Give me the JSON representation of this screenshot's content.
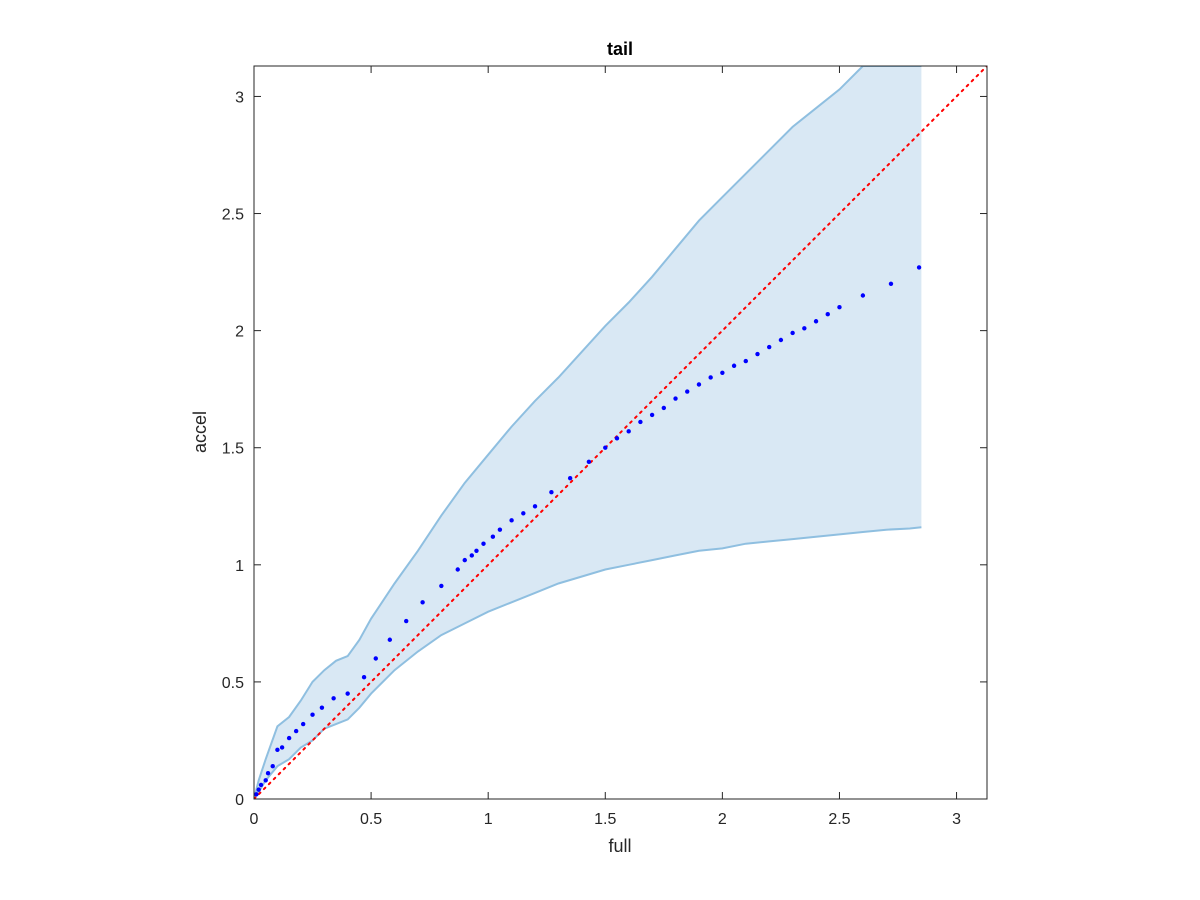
{
  "chart_data": {
    "type": "scatter",
    "title": "tail",
    "xlabel": "full",
    "ylabel": "accel",
    "xlim": [
      0,
      3.13
    ],
    "ylim": [
      0,
      3.13
    ],
    "xticks": [
      0,
      0.5,
      1,
      1.5,
      2,
      2.5,
      3
    ],
    "yticks": [
      0,
      0.5,
      1,
      1.5,
      2,
      2.5,
      3
    ],
    "xtick_labels": [
      "0",
      "0.5",
      "1",
      "1.5",
      "2",
      "2.5",
      "3"
    ],
    "ytick_labels": [
      "0",
      "0.5",
      "1",
      "1.5",
      "2",
      "2.5",
      "3"
    ],
    "grid": false,
    "colors": {
      "points": "#0000ff",
      "band_fill": "#d9e8f4",
      "band_edge": "#8fbfe0",
      "reference_line": "#ff0000",
      "axes": "#262626"
    },
    "reference_line": {
      "style": "dotted",
      "x": [
        0,
        3.13
      ],
      "y": [
        0,
        3.13
      ]
    },
    "band": {
      "x": [
        0,
        0.02,
        0.05,
        0.1,
        0.15,
        0.2,
        0.25,
        0.3,
        0.35,
        0.4,
        0.45,
        0.5,
        0.6,
        0.7,
        0.8,
        0.9,
        1.0,
        1.1,
        1.2,
        1.3,
        1.4,
        1.5,
        1.6,
        1.7,
        1.8,
        1.9,
        2.0,
        2.1,
        2.2,
        2.3,
        2.4,
        2.5,
        2.6,
        2.7,
        2.8,
        2.85
      ],
      "upper": [
        0,
        0.08,
        0.17,
        0.31,
        0.35,
        0.42,
        0.5,
        0.55,
        0.59,
        0.61,
        0.68,
        0.77,
        0.92,
        1.06,
        1.21,
        1.35,
        1.47,
        1.59,
        1.7,
        1.8,
        1.91,
        2.02,
        2.12,
        2.23,
        2.35,
        2.47,
        2.57,
        2.67,
        2.77,
        2.87,
        2.95,
        3.03,
        3.13,
        3.13,
        3.13,
        3.13
      ],
      "lower": [
        0,
        0.03,
        0.08,
        0.14,
        0.17,
        0.22,
        0.25,
        0.3,
        0.32,
        0.34,
        0.39,
        0.45,
        0.55,
        0.63,
        0.7,
        0.75,
        0.8,
        0.84,
        0.88,
        0.92,
        0.95,
        0.98,
        1.0,
        1.02,
        1.04,
        1.06,
        1.07,
        1.09,
        1.1,
        1.11,
        1.12,
        1.13,
        1.14,
        1.15,
        1.155,
        1.16
      ]
    },
    "points": {
      "x": [
        0.01,
        0.02,
        0.03,
        0.05,
        0.06,
        0.08,
        0.1,
        0.12,
        0.15,
        0.18,
        0.21,
        0.25,
        0.29,
        0.34,
        0.4,
        0.47,
        0.52,
        0.58,
        0.65,
        0.72,
        0.8,
        0.87,
        0.9,
        0.93,
        0.95,
        0.98,
        1.02,
        1.05,
        1.1,
        1.15,
        1.2,
        1.27,
        1.35,
        1.43,
        1.5,
        1.55,
        1.6,
        1.65,
        1.7,
        1.75,
        1.8,
        1.85,
        1.9,
        1.95,
        2.0,
        2.05,
        2.1,
        2.15,
        2.2,
        2.25,
        2.3,
        2.35,
        2.4,
        2.45,
        2.5,
        2.6,
        2.72,
        2.84
      ],
      "y": [
        0.02,
        0.04,
        0.06,
        0.08,
        0.11,
        0.14,
        0.21,
        0.22,
        0.26,
        0.29,
        0.32,
        0.36,
        0.39,
        0.43,
        0.45,
        0.52,
        0.6,
        0.68,
        0.76,
        0.84,
        0.91,
        0.98,
        1.02,
        1.04,
        1.06,
        1.09,
        1.12,
        1.15,
        1.19,
        1.22,
        1.25,
        1.31,
        1.37,
        1.44,
        1.5,
        1.54,
        1.57,
        1.61,
        1.64,
        1.67,
        1.71,
        1.74,
        1.77,
        1.8,
        1.82,
        1.85,
        1.87,
        1.9,
        1.93,
        1.96,
        1.99,
        2.01,
        2.04,
        2.07,
        2.1,
        2.15,
        2.2,
        2.27
      ]
    }
  }
}
